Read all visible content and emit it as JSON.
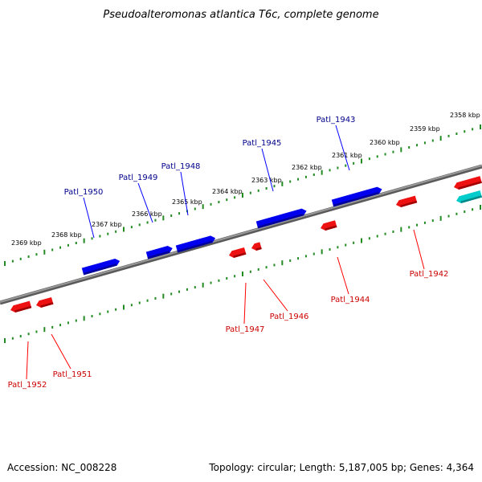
{
  "title": "Pseudoalteromonas atlantica T6c, complete genome",
  "footer": {
    "accession": "Accession: NC_008228",
    "summary": "Topology: circular; Length: 5,187,005 bp; Genes: 4,364"
  },
  "colors": {
    "forward_gene": "#0000ee",
    "forward_label": "#00008b",
    "reverse_gene": "#ee0000",
    "reverse_label": "#cc0000",
    "other_gene": "#00c8c8",
    "backbone": "#808080",
    "ticks": "#228b22"
  },
  "ruler": {
    "unit": "kbp",
    "labels": [
      "2358 kbp",
      "2359 kbp",
      "2360 kbp",
      "2361 kbp",
      "2362 kbp",
      "2363 kbp",
      "2364 kbp",
      "2365 kbp",
      "2366 kbp",
      "2367 kbp",
      "2368 kbp",
      "2369 kbp"
    ]
  },
  "forward_genes": [
    "Patl_1943",
    "Patl_1945",
    "Patl_1948",
    "Patl_1949",
    "Patl_1950"
  ],
  "reverse_genes": [
    "Patl_1942",
    "Patl_1944",
    "Patl_1946",
    "Patl_1947",
    "Patl_1951",
    "Patl_1952"
  ]
}
